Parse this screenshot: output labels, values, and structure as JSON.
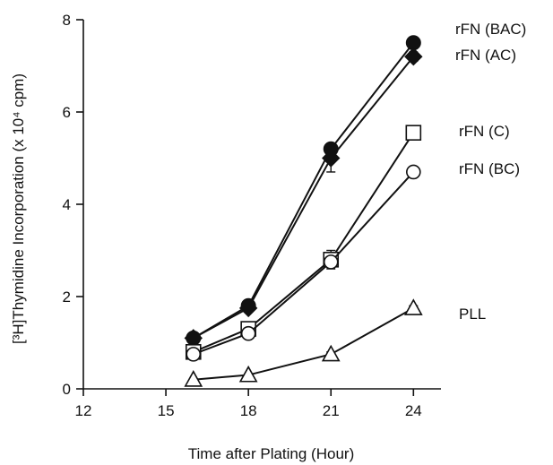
{
  "chart_data": {
    "type": "line",
    "title": "",
    "xlabel": "Time after Plating (Hour)",
    "ylabel": "[³H]Thymidine Incorporation (x 10⁴ cpm)",
    "xlim": [
      12,
      25
    ],
    "ylim": [
      0,
      8
    ],
    "xticks": [
      "12",
      "15",
      "18",
      "21",
      "24"
    ],
    "yticks": [
      "0",
      "2",
      "4",
      "6",
      "8"
    ],
    "grid": false,
    "legend": "right (labels beside line ends)",
    "series": [
      {
        "name": "rFN (BAC)",
        "marker": "circle-filled",
        "x": [
          16,
          18,
          21,
          24
        ],
        "y": [
          1.1,
          1.8,
          5.2,
          7.5
        ],
        "err": [
          0.05,
          0.05,
          0.1,
          0.1
        ]
      },
      {
        "name": "rFN (AC)",
        "marker": "diamond-filled",
        "x": [
          16,
          18,
          21,
          24
        ],
        "y": [
          1.1,
          1.75,
          5.0,
          7.2
        ],
        "err": [
          0.05,
          0.05,
          0.3,
          0.1
        ]
      },
      {
        "name": "rFN (C)",
        "marker": "square-open",
        "x": [
          16,
          18,
          21,
          24
        ],
        "y": [
          0.8,
          1.3,
          2.8,
          5.55
        ],
        "err": [
          0.05,
          0.05,
          0.2,
          0.05
        ]
      },
      {
        "name": "rFN (BC)",
        "marker": "circle-open",
        "x": [
          16,
          18,
          21,
          24
        ],
        "y": [
          0.75,
          1.2,
          2.75,
          4.7
        ],
        "err": [
          0.05,
          0.05,
          0.1,
          0.05
        ]
      },
      {
        "name": "PLL",
        "marker": "triangle-open",
        "x": [
          16,
          18,
          21,
          24
        ],
        "y": [
          0.2,
          0.3,
          0.75,
          1.75
        ],
        "err": [
          0.02,
          0.02,
          0.05,
          0.05
        ]
      }
    ]
  }
}
